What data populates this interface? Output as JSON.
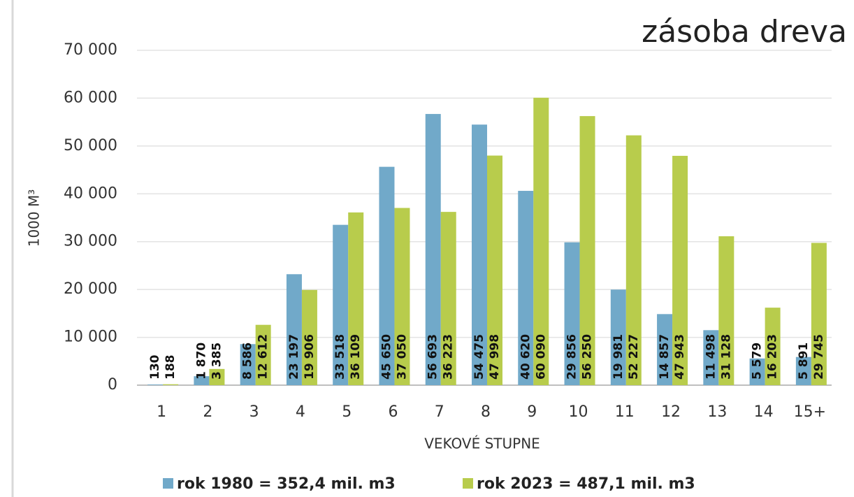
{
  "chart_data": {
    "type": "bar",
    "title": "zásoba dreva",
    "x_label": "VEKOVÉ STUPNE",
    "y_label": "1000 M³",
    "categories": [
      "1",
      "2",
      "3",
      "4",
      "5",
      "6",
      "7",
      "8",
      "9",
      "10",
      "11",
      "12",
      "13",
      "14",
      "15+"
    ],
    "series": [
      {
        "name": "rok 1980 = 352,4 mil. m3",
        "color": "#71a9c9",
        "values": [
          130,
          1870,
          8586,
          23197,
          33518,
          45650,
          56693,
          54475,
          40620,
          29856,
          19981,
          14857,
          11498,
          5579,
          5891
        ],
        "value_labels": [
          "130",
          "1 870",
          "8 586",
          "23 197",
          "33 518",
          "45 650",
          "56 693",
          "54 475",
          "40 620",
          "29 856",
          "19 981",
          "14 857",
          "11 498",
          "5 579",
          "5 891"
        ]
      },
      {
        "name": "rok 2023 = 487,1 mil. m3",
        "color": "#b8cc4c",
        "values": [
          188,
          3385,
          12612,
          19906,
          36109,
          37050,
          36223,
          47998,
          60090,
          56250,
          52227,
          47943,
          31128,
          16203,
          29745
        ],
        "value_labels": [
          "188",
          "3 385",
          "12 612",
          "19 906",
          "36 109",
          "37 050",
          "36 223",
          "47 998",
          "60 090",
          "56 250",
          "52 227",
          "47 943",
          "31 128",
          "16 203",
          "29 745"
        ]
      }
    ],
    "ylim": [
      0,
      70000
    ],
    "yticks": [
      0,
      {
        "value": 10000,
        "label": "10 000"
      },
      {
        "value": 20000,
        "label": "20 000"
      },
      {
        "value": 30000,
        "label": "30 000"
      },
      {
        "value": 40000,
        "label": "40 000"
      },
      {
        "value": 50000,
        "label": "50 000"
      },
      {
        "value": 60000,
        "label": "60 000"
      },
      {
        "value": 70000,
        "label": "70 000"
      }
    ],
    "grid": true,
    "legend": "bottom"
  }
}
